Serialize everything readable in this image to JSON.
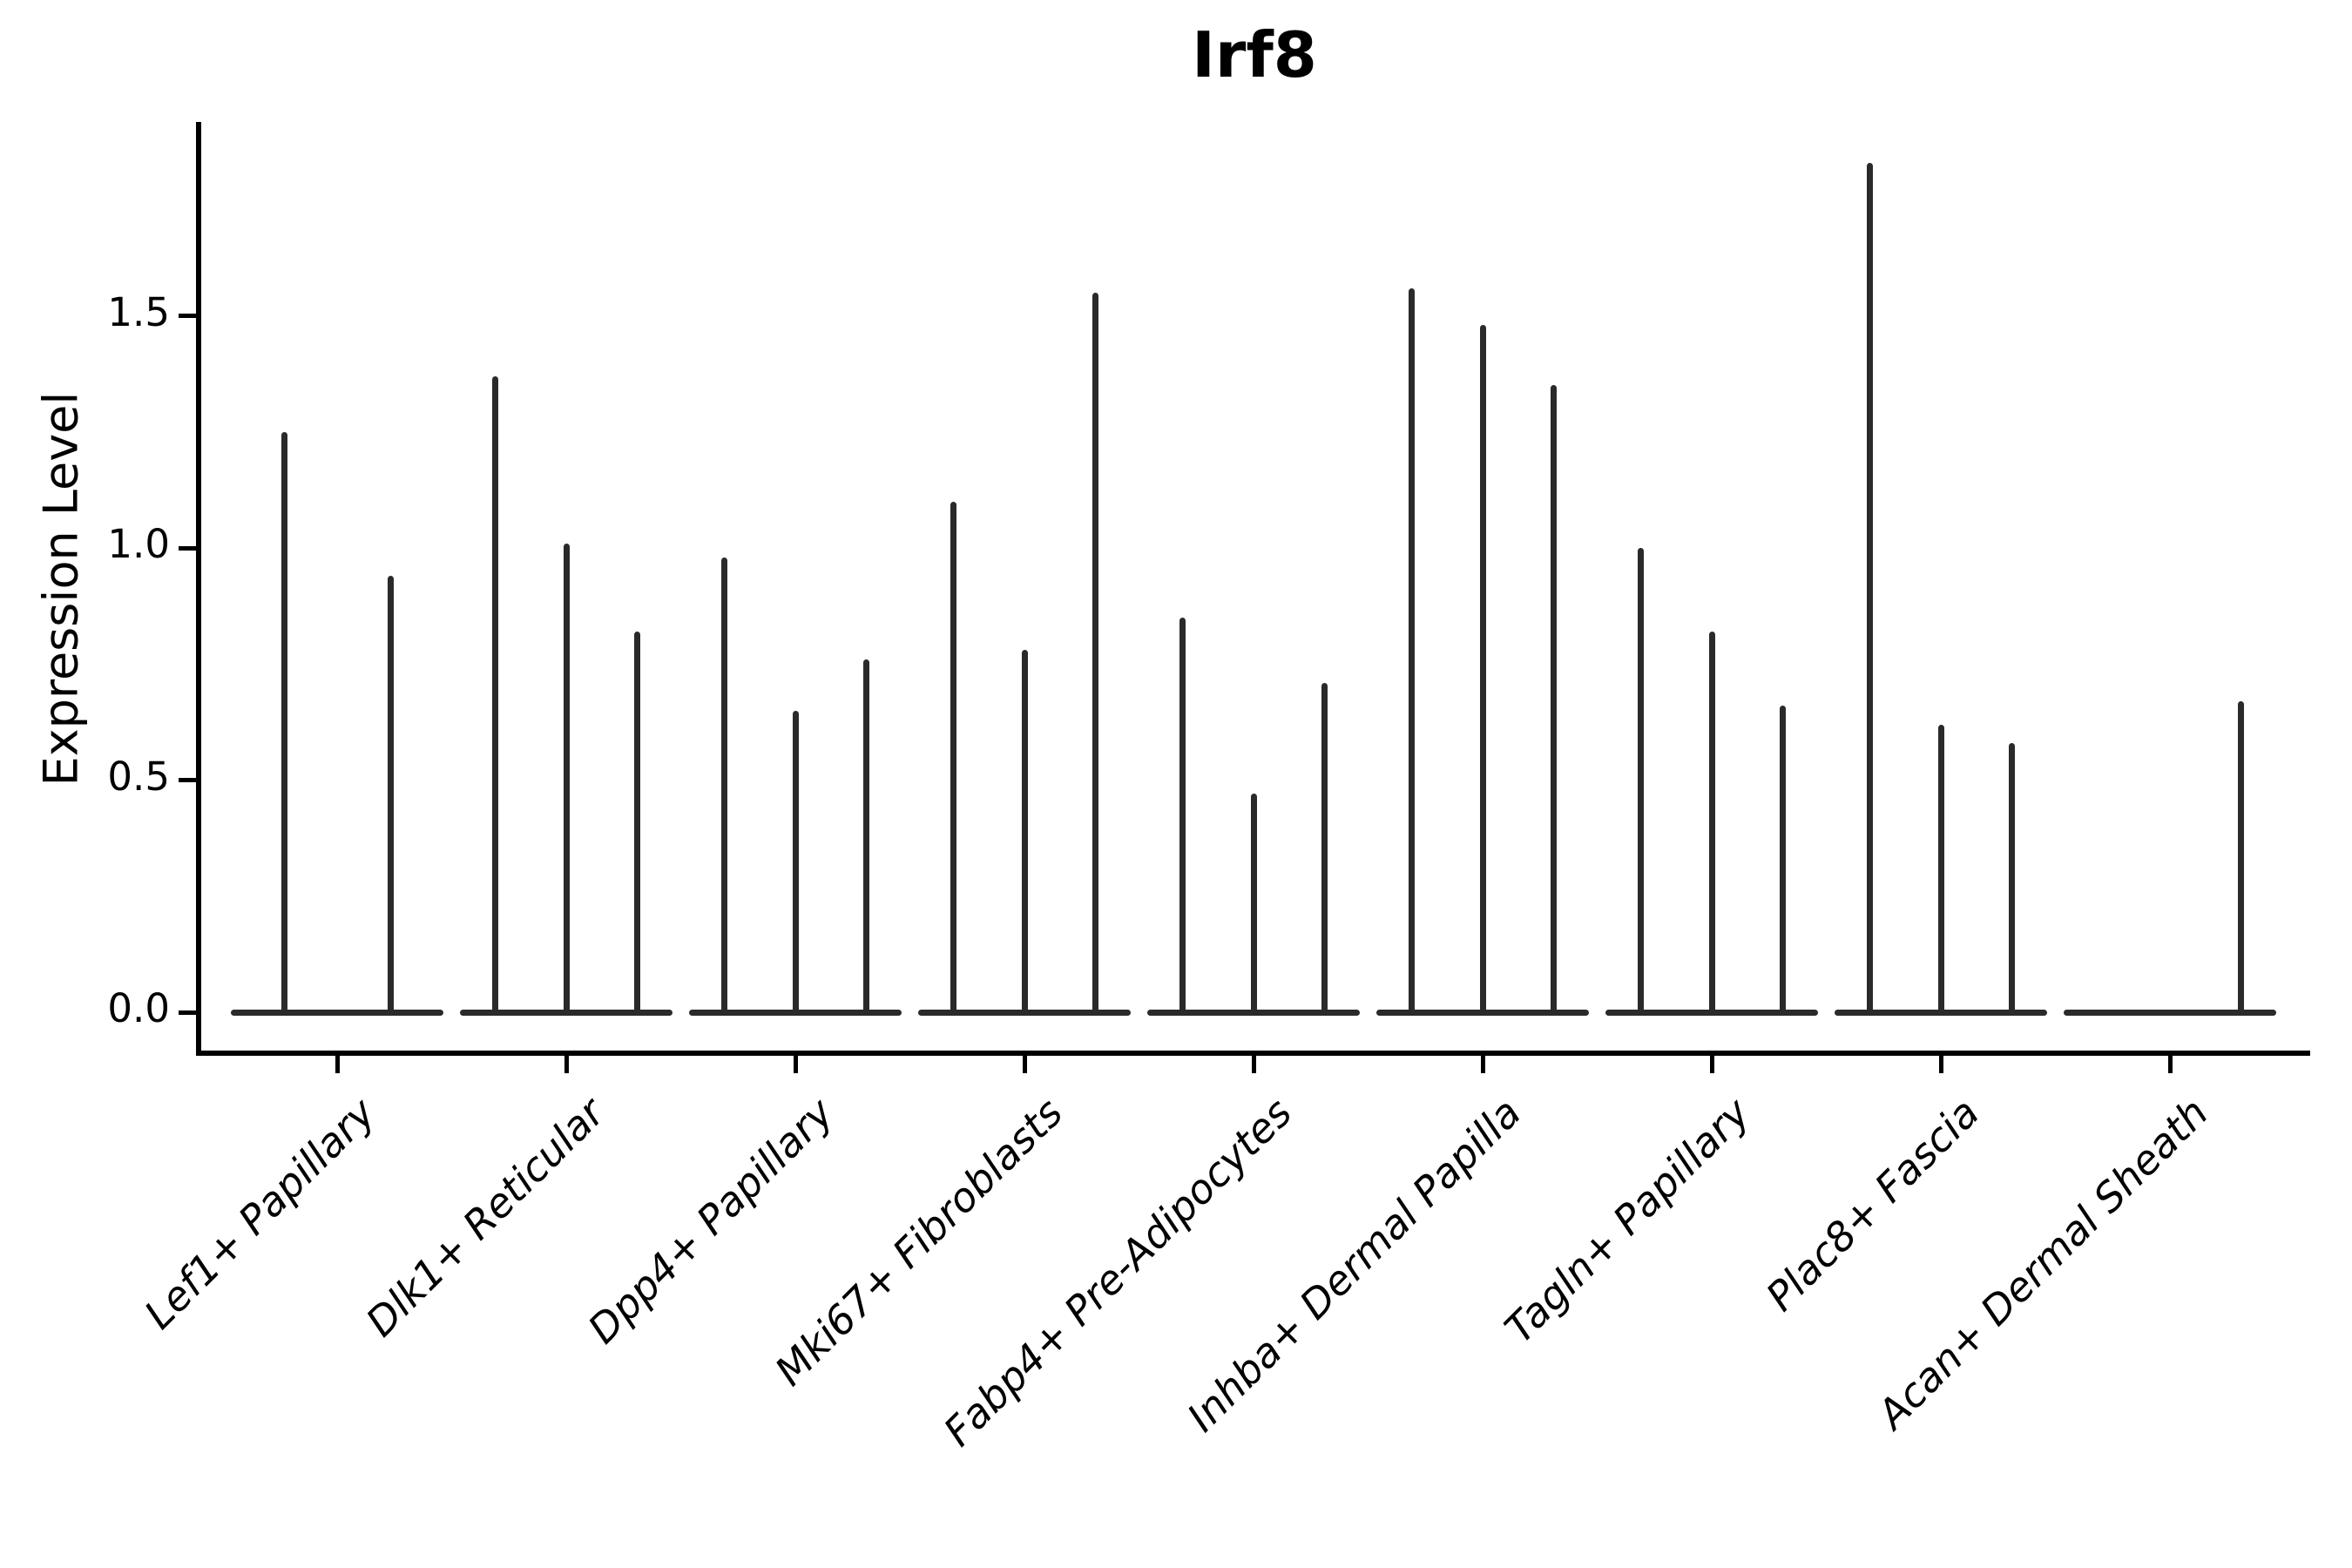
{
  "chart_data": {
    "type": "violin",
    "title": "Irf8",
    "ylabel": "Expression Level",
    "xlabel": "",
    "y_axis": {
      "ticks": [
        0.0,
        0.5,
        1.0,
        1.5
      ],
      "tick_labels": [
        "0.0",
        "0.5",
        "1.0",
        "1.5"
      ],
      "ylim": [
        -0.05,
        1.92
      ],
      "grid": false
    },
    "legend": "none",
    "categories": [
      "Lef1+ Papillary",
      "Dlk1+ Reticular",
      "Dpp4+ Papillary",
      "Mki67+ Fibroblasts",
      "Fabp4+ Pre-Adipocytes",
      "Inhba+ Dermal Papilla",
      "Tagln+ Papillary",
      "Plac8+ Fascia",
      "Acan+ Dermal Sheath"
    ],
    "groups": [
      {
        "label": "Lef1+ Papillary",
        "violin_max_expression": [
          1.25,
          0.94
        ]
      },
      {
        "label": "Dlk1+ Reticular",
        "violin_max_expression": [
          1.37,
          1.01,
          0.82
        ]
      },
      {
        "label": "Dpp4+ Papillary",
        "violin_max_expression": [
          0.98,
          0.65,
          0.76
        ]
      },
      {
        "label": "Mki67+ Fibroblasts",
        "violin_max_expression": [
          1.1,
          0.78,
          1.55
        ]
      },
      {
        "label": "Fabp4+ Pre-Adipocytes",
        "violin_max_expression": [
          0.85,
          0.47,
          0.71
        ]
      },
      {
        "label": "Inhba+ Dermal Papilla",
        "violin_max_expression": [
          1.56,
          1.48,
          1.35
        ]
      },
      {
        "label": "Tagln+ Papillary",
        "violin_max_expression": [
          1.0,
          0.82,
          0.66
        ]
      },
      {
        "label": "Plac8+ Fascia",
        "violin_max_expression": [
          1.83,
          0.62,
          0.58
        ]
      },
      {
        "label": "Acan+ Dermal Sheath",
        "violin_max_expression": [
          0.0,
          0.0,
          0.67
        ]
      }
    ],
    "note": "Violins are needle-thin: wide flat base at 0 expression with narrow spikes up to the max expression value per sub-violin.",
    "colors": {
      "background": "#ffffff",
      "ink": "#000000",
      "violin": "#2a2a2a"
    }
  }
}
